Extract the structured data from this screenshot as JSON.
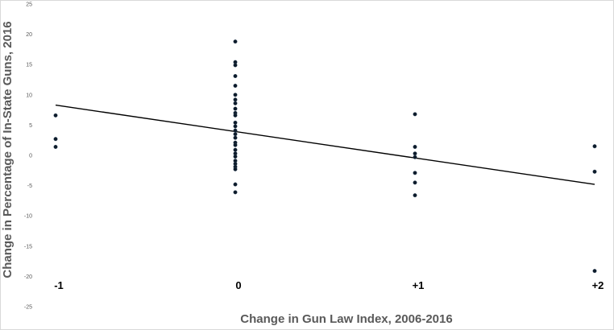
{
  "chart_data": {
    "type": "scatter",
    "title": "",
    "xlabel": "Change in Gun Law Index, 2006-2016",
    "ylabel": "Change in Percentage of In-State Guns, 2016",
    "x_categories": [
      {
        "x": -1,
        "label": "-1"
      },
      {
        "x": 0,
        "label": "0"
      },
      {
        "x": 1,
        "label": "+1"
      },
      {
        "x": 2,
        "label": "+2"
      }
    ],
    "xlim": [
      -1,
      2
    ],
    "ylim": [
      -25,
      25
    ],
    "y_ticks": [
      {
        "value": 25,
        "label": "25"
      },
      {
        "value": 20,
        "label": "20"
      },
      {
        "value": 15,
        "label": "15"
      },
      {
        "value": 10,
        "label": "10"
      },
      {
        "value": 5,
        "label": "5"
      },
      {
        "value": 0,
        "label": "0"
      },
      {
        "value": -5,
        "label": "-5"
      },
      {
        "value": -10,
        "label": "-10"
      },
      {
        "value": -15,
        "label": "-15"
      },
      {
        "value": -20,
        "label": "-20"
      },
      {
        "value": -25,
        "label": "-25"
      }
    ],
    "grid": false,
    "legend": "none",
    "point_color": "#0d1b2a",
    "trendline": {
      "type": "linear",
      "x": [
        -1,
        2
      ],
      "y": [
        8.3,
        -4.8
      ],
      "color": "#000000"
    },
    "points": [
      {
        "x": -1,
        "y": 6.6
      },
      {
        "x": -1,
        "y": 2.7
      },
      {
        "x": -1,
        "y": 1.4
      },
      {
        "x": 0,
        "y": 18.8
      },
      {
        "x": 0,
        "y": 15.4
      },
      {
        "x": 0,
        "y": 14.9
      },
      {
        "x": 0,
        "y": 13.1
      },
      {
        "x": 0,
        "y": 11.5
      },
      {
        "x": 0,
        "y": 10.0
      },
      {
        "x": 0,
        "y": 9.2
      },
      {
        "x": 0,
        "y": 8.6
      },
      {
        "x": 0,
        "y": 7.7
      },
      {
        "x": 0,
        "y": 7.0
      },
      {
        "x": 0,
        "y": 6.6
      },
      {
        "x": 0,
        "y": 5.4
      },
      {
        "x": 0,
        "y": 4.8
      },
      {
        "x": 0,
        "y": 4.1
      },
      {
        "x": 0,
        "y": 3.5
      },
      {
        "x": 0,
        "y": 2.9
      },
      {
        "x": 0,
        "y": 2.1
      },
      {
        "x": 0,
        "y": 1.7
      },
      {
        "x": 0,
        "y": 0.9
      },
      {
        "x": 0,
        "y": 0.3
      },
      {
        "x": 0,
        "y": -0.2
      },
      {
        "x": 0,
        "y": -0.9
      },
      {
        "x": 0,
        "y": -1.4
      },
      {
        "x": 0,
        "y": -1.9
      },
      {
        "x": 0,
        "y": -2.3
      },
      {
        "x": 0,
        "y": -4.8
      },
      {
        "x": 0,
        "y": -6.1
      },
      {
        "x": 1,
        "y": 6.8
      },
      {
        "x": 1,
        "y": 1.4
      },
      {
        "x": 1,
        "y": 0.3
      },
      {
        "x": 1,
        "y": -0.3
      },
      {
        "x": 1,
        "y": -2.9
      },
      {
        "x": 1,
        "y": -4.5
      },
      {
        "x": 1,
        "y": -6.6
      },
      {
        "x": 2,
        "y": 1.5
      },
      {
        "x": 2,
        "y": -2.7
      },
      {
        "x": 2,
        "y": -19.1
      }
    ]
  }
}
